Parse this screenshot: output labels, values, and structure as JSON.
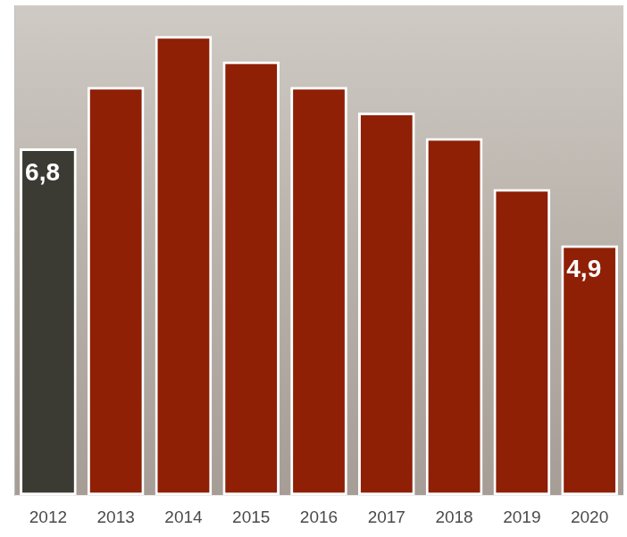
{
  "chart_data": {
    "type": "bar",
    "categories": [
      "2012",
      "2013",
      "2014",
      "2015",
      "2016",
      "2017",
      "2018",
      "2019",
      "2020"
    ],
    "values": [
      6.8,
      8.0,
      9.0,
      8.5,
      8.0,
      7.5,
      7.0,
      6.0,
      4.9
    ],
    "value_labels": [
      "6,8",
      null,
      null,
      null,
      null,
      null,
      null,
      null,
      "4,9"
    ],
    "colors": [
      "#3b3a33",
      "#8f1f05",
      "#8f1f05",
      "#8f1f05",
      "#8f1f05",
      "#8f1f05",
      "#8f1f05",
      "#8f1f05",
      "#8f1f05"
    ],
    "ylim": [
      0,
      9.6
    ],
    "grid": false,
    "data_labels": true,
    "tick_labels": "x"
  }
}
